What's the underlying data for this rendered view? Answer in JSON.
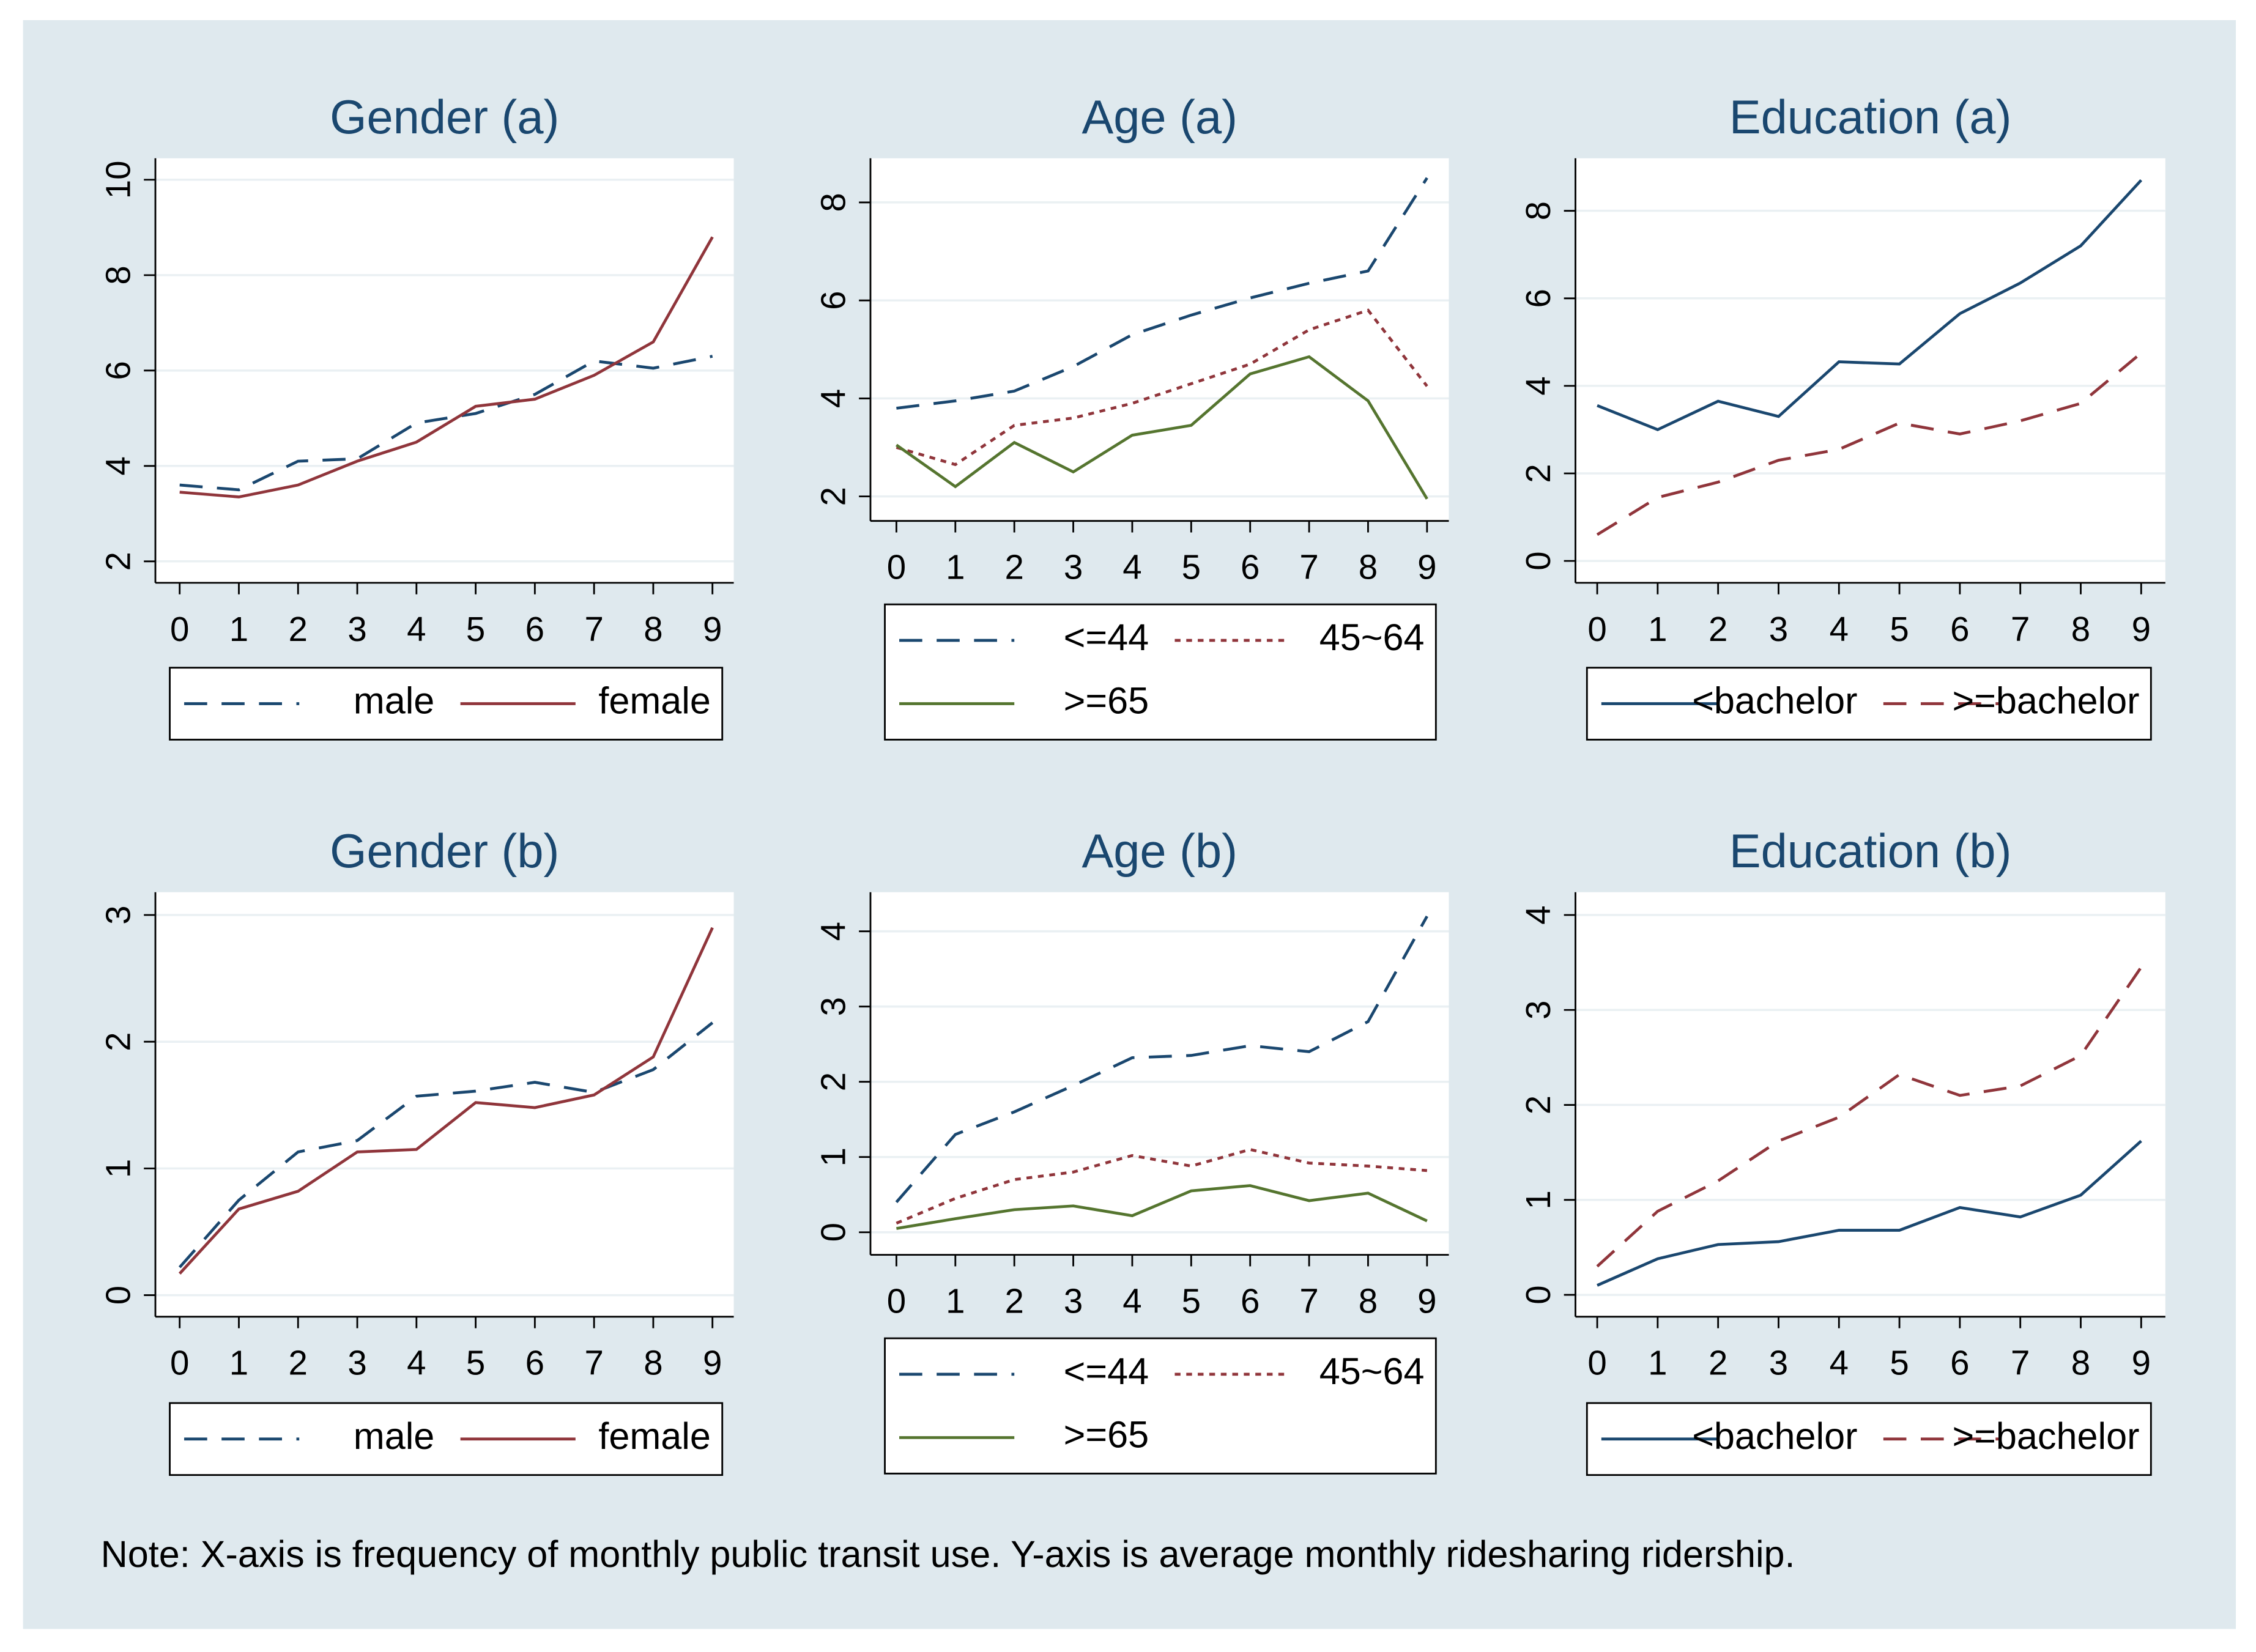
{
  "chart_data": [
    {
      "type": "line",
      "title": "Gender (a)",
      "x": [
        0,
        1,
        2,
        3,
        4,
        5,
        6,
        7,
        8,
        9
      ],
      "xlim": [
        -0.41,
        9.36
      ],
      "xticks": [
        0,
        1,
        2,
        3,
        4,
        5,
        6,
        7,
        8,
        9
      ],
      "ylim": [
        1.55,
        10.45
      ],
      "yticks": [
        2,
        4,
        6,
        8,
        10
      ],
      "grid": true,
      "series": [
        {
          "name": "male",
          "color": "#1a476f",
          "style": "dashed",
          "values": [
            3.6,
            3.5,
            4.1,
            4.15,
            4.9,
            5.1,
            5.5,
            6.2,
            6.05,
            6.3
          ]
        },
        {
          "name": "female",
          "color": "#90353b",
          "style": "solid",
          "values": [
            3.45,
            3.35,
            3.6,
            4.1,
            4.5,
            5.25,
            5.4,
            5.9,
            6.6,
            8.8
          ]
        }
      ]
    },
    {
      "type": "line",
      "title": "Age (a)",
      "x": [
        0,
        1,
        2,
        3,
        4,
        5,
        6,
        7,
        8,
        9
      ],
      "xlim": [
        -0.44,
        9.37
      ],
      "xticks": [
        0,
        1,
        2,
        3,
        4,
        5,
        6,
        7,
        8,
        9
      ],
      "ylim": [
        1.5,
        8.9
      ],
      "yticks": [
        2,
        4,
        6,
        8
      ],
      "grid": true,
      "series": [
        {
          "name": "<=44",
          "color": "#1a476f",
          "style": "dashed",
          "values": [
            3.8,
            3.95,
            4.15,
            4.65,
            5.3,
            5.7,
            6.05,
            6.35,
            6.6,
            8.5
          ]
        },
        {
          "name": "45~64",
          "color": "#90353b",
          "style": "dotted",
          "values": [
            3.0,
            2.65,
            3.45,
            3.6,
            3.9,
            4.3,
            4.7,
            5.4,
            5.8,
            4.25
          ]
        },
        {
          "name": ">=65",
          "color": "#55752f",
          "style": "solid",
          "values": [
            3.05,
            2.2,
            3.1,
            2.5,
            3.25,
            3.45,
            4.5,
            4.85,
            3.95,
            1.95
          ]
        }
      ]
    },
    {
      "type": "line",
      "title": "Education (a)",
      "x": [
        0,
        1,
        2,
        3,
        4,
        5,
        6,
        7,
        8,
        9
      ],
      "xlim": [
        -0.36,
        9.4
      ],
      "xticks": [
        0,
        1,
        2,
        3,
        4,
        5,
        6,
        7,
        8,
        9
      ],
      "ylim": [
        -0.5,
        9.2
      ],
      "yticks": [
        0,
        2,
        4,
        6,
        8
      ],
      "grid": true,
      "series": [
        {
          "name": "<bachelor",
          "color": "#1a476f",
          "style": "solid",
          "values": [
            3.55,
            3.0,
            3.65,
            3.3,
            4.55,
            4.5,
            5.65,
            6.35,
            7.2,
            8.7
          ]
        },
        {
          "name": ">=bachelor",
          "color": "#90353b",
          "style": "dashed",
          "values": [
            0.6,
            1.45,
            1.8,
            2.3,
            2.55,
            3.15,
            2.9,
            3.2,
            3.6,
            4.75
          ]
        }
      ]
    },
    {
      "type": "line",
      "title": "Gender (b)",
      "x": [
        0,
        1,
        2,
        3,
        4,
        5,
        6,
        7,
        8,
        9
      ],
      "xlim": [
        -0.41,
        9.36
      ],
      "xticks": [
        0,
        1,
        2,
        3,
        4,
        5,
        6,
        7,
        8,
        9
      ],
      "ylim": [
        -0.17,
        3.18
      ],
      "yticks": [
        0,
        1,
        2,
        3
      ],
      "grid": true,
      "series": [
        {
          "name": "male",
          "color": "#1a476f",
          "style": "dashed",
          "values": [
            0.22,
            0.75,
            1.13,
            1.22,
            1.57,
            1.61,
            1.68,
            1.6,
            1.78,
            2.15
          ]
        },
        {
          "name": "female",
          "color": "#90353b",
          "style": "solid",
          "values": [
            0.17,
            0.68,
            0.82,
            1.13,
            1.15,
            1.52,
            1.48,
            1.58,
            1.88,
            2.9
          ]
        }
      ]
    },
    {
      "type": "line",
      "title": "Age (b)",
      "x": [
        0,
        1,
        2,
        3,
        4,
        5,
        6,
        7,
        8,
        9
      ],
      "xlim": [
        -0.44,
        9.37
      ],
      "xticks": [
        0,
        1,
        2,
        3,
        4,
        5,
        6,
        7,
        8,
        9
      ],
      "ylim": [
        -0.3,
        4.52
      ],
      "yticks": [
        0,
        1,
        2,
        3,
        4
      ],
      "grid": true,
      "series": [
        {
          "name": "<=44",
          "color": "#1a476f",
          "style": "dashed",
          "values": [
            0.4,
            1.3,
            1.6,
            1.95,
            2.32,
            2.35,
            2.48,
            2.4,
            2.8,
            4.2
          ]
        },
        {
          "name": "45~64",
          "color": "#90353b",
          "style": "dotted",
          "values": [
            0.12,
            0.45,
            0.7,
            0.8,
            1.02,
            0.88,
            1.1,
            0.92,
            0.88,
            0.82
          ]
        },
        {
          "name": ">=65",
          "color": "#55752f",
          "style": "solid",
          "values": [
            0.05,
            0.18,
            0.3,
            0.35,
            0.22,
            0.55,
            0.62,
            0.42,
            0.52,
            0.15
          ]
        }
      ]
    },
    {
      "type": "line",
      "title": "Education (b)",
      "x": [
        0,
        1,
        2,
        3,
        4,
        5,
        6,
        7,
        8,
        9
      ],
      "xlim": [
        -0.36,
        9.4
      ],
      "xticks": [
        0,
        1,
        2,
        3,
        4,
        5,
        6,
        7,
        8,
        9
      ],
      "ylim": [
        -0.23,
        4.24
      ],
      "yticks": [
        0,
        1,
        2,
        3,
        4
      ],
      "grid": true,
      "series": [
        {
          "name": "<bachelor",
          "color": "#1a476f",
          "style": "solid",
          "values": [
            0.1,
            0.38,
            0.53,
            0.56,
            0.68,
            0.68,
            0.92,
            0.82,
            1.05,
            1.62
          ]
        },
        {
          "name": ">=bachelor",
          "color": "#90353b",
          "style": "dashed",
          "values": [
            0.3,
            0.88,
            1.2,
            1.62,
            1.87,
            2.32,
            2.1,
            2.2,
            2.52,
            3.45
          ]
        }
      ]
    }
  ],
  "note": "Note: X-axis is frequency of monthly public transit use. Y-axis is average monthly ridesharing ridership."
}
